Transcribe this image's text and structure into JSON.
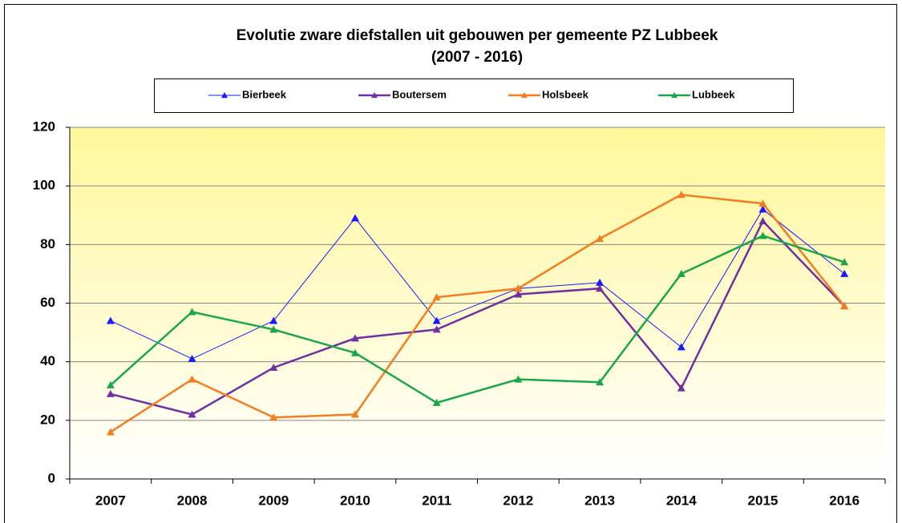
{
  "chart_data": {
    "type": "line",
    "title": "Evolutie zware diefstallen uit gebouwen per gemeente PZ Lubbeek",
    "subtitle": "(2007 - 2016)",
    "categories": [
      "2007",
      "2008",
      "2009",
      "2010",
      "2011",
      "2012",
      "2013",
      "2014",
      "2015",
      "2016"
    ],
    "series": [
      {
        "name": "Bierbeek",
        "color": "#1a1aff",
        "width": 1,
        "values": [
          54,
          41,
          54,
          89,
          54,
          65,
          67,
          45,
          92,
          70
        ]
      },
      {
        "name": "Boutersem",
        "color": "#7030a0",
        "width": 2.5,
        "values": [
          29,
          22,
          38,
          48,
          51,
          63,
          65,
          31,
          88,
          59
        ]
      },
      {
        "name": "Holsbeek",
        "color": "#f57c1f",
        "width": 2.5,
        "values": [
          16,
          34,
          21,
          22,
          62,
          65,
          82,
          97,
          94,
          59
        ]
      },
      {
        "name": "Lubbeek",
        "color": "#1aa64a",
        "width": 2.5,
        "values": [
          32,
          57,
          51,
          43,
          26,
          34,
          33,
          70,
          83,
          74
        ]
      }
    ],
    "ylim": [
      0,
      120
    ],
    "yticks": [
      0,
      20,
      40,
      60,
      80,
      100,
      120
    ],
    "grid": true,
    "legend": "top"
  }
}
